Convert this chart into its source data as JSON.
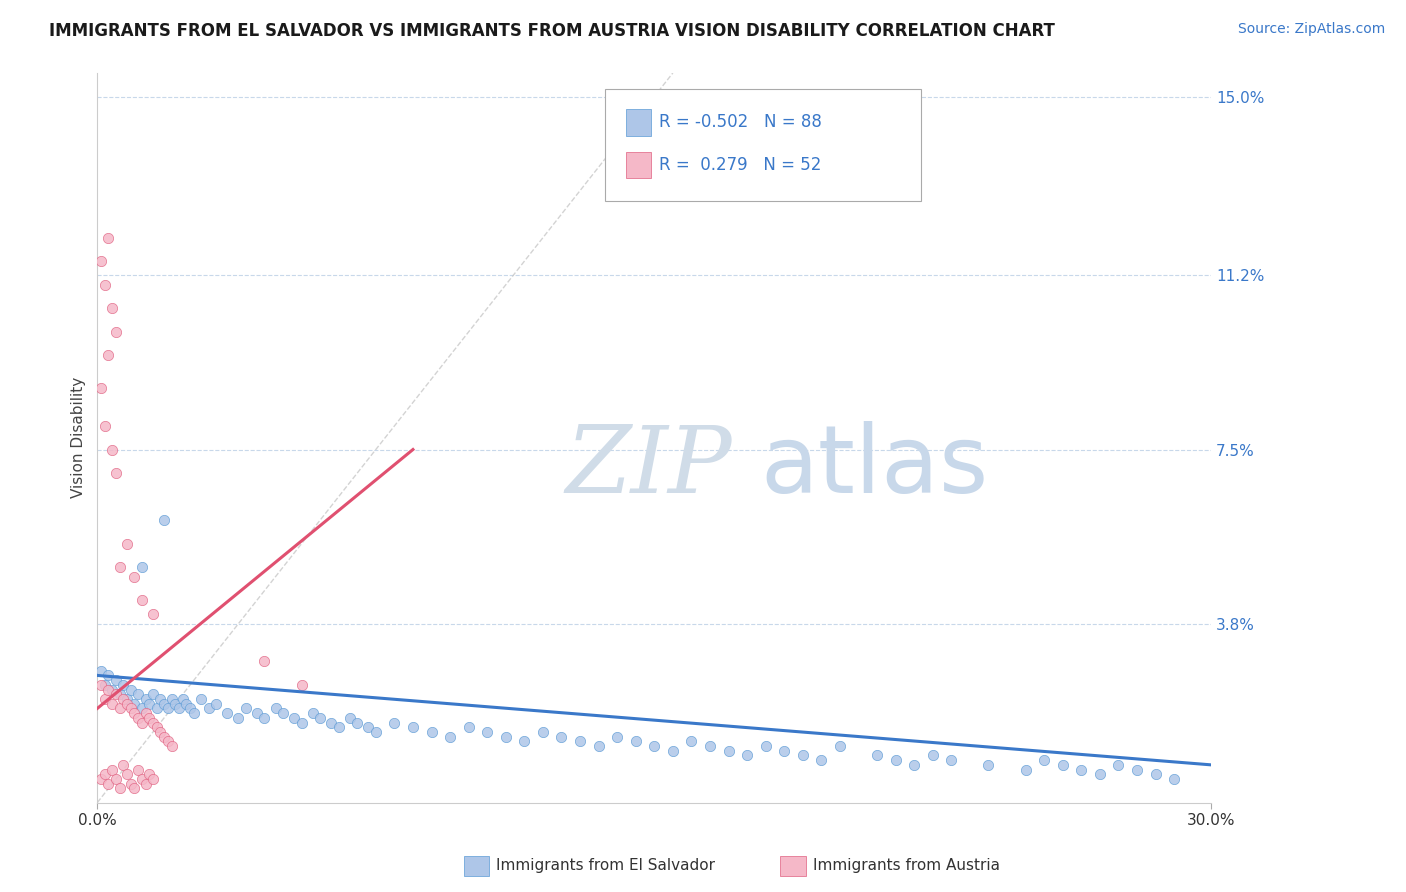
{
  "title": "IMMIGRANTS FROM EL SALVADOR VS IMMIGRANTS FROM AUSTRIA VISION DISABILITY CORRELATION CHART",
  "source_text": "Source: ZipAtlas.com",
  "ylabel": "Vision Disability",
  "xlim": [
    0.0,
    0.3
  ],
  "ylim": [
    0.0,
    0.155
  ],
  "ytick_vals": [
    0.038,
    0.075,
    0.112,
    0.15
  ],
  "ytick_labels": [
    "3.8%",
    "7.5%",
    "11.2%",
    "15.0%"
  ],
  "xtick_vals": [
    0.0,
    0.3
  ],
  "xtick_labels": [
    "0.0%",
    "30.0%"
  ],
  "series": [
    {
      "name": "Immigrants from El Salvador",
      "R": -0.502,
      "N": 88,
      "dot_color": "#aec6e8",
      "dot_edge": "#5b9bd5",
      "trend_color": "#3a78c9",
      "trend_start_y": 0.027,
      "trend_end_y": 0.008
    },
    {
      "name": "Immigrants from Austria",
      "R": 0.279,
      "N": 52,
      "dot_color": "#f5b8c8",
      "dot_edge": "#e06080",
      "trend_color": "#e05070",
      "trend_start_y": 0.02,
      "trend_end_y": 0.075
    }
  ],
  "background_color": "#ffffff",
  "grid_color": "#c8d8ea",
  "diagonal_color": "#c8c8c8",
  "watermark_color": "#dde8f5",
  "title_fontsize": 12,
  "tick_fontsize": 11,
  "legend_fontsize": 12,
  "source_fontsize": 10,
  "axis_label_fontsize": 11,
  "el_salvador_x": [
    0.001,
    0.002,
    0.003,
    0.004,
    0.005,
    0.006,
    0.007,
    0.008,
    0.009,
    0.01,
    0.011,
    0.012,
    0.013,
    0.014,
    0.015,
    0.016,
    0.017,
    0.018,
    0.019,
    0.02,
    0.021,
    0.022,
    0.023,
    0.024,
    0.025,
    0.026,
    0.028,
    0.03,
    0.032,
    0.035,
    0.038,
    0.04,
    0.043,
    0.045,
    0.048,
    0.05,
    0.053,
    0.055,
    0.058,
    0.06,
    0.063,
    0.065,
    0.068,
    0.07,
    0.073,
    0.075,
    0.08,
    0.085,
    0.09,
    0.095,
    0.1,
    0.105,
    0.11,
    0.115,
    0.12,
    0.125,
    0.13,
    0.135,
    0.14,
    0.145,
    0.15,
    0.155,
    0.16,
    0.165,
    0.17,
    0.175,
    0.18,
    0.185,
    0.19,
    0.195,
    0.2,
    0.21,
    0.215,
    0.22,
    0.225,
    0.23,
    0.24,
    0.25,
    0.255,
    0.26,
    0.265,
    0.27,
    0.275,
    0.28,
    0.285,
    0.29,
    0.012,
    0.018
  ],
  "el_salvador_y": [
    0.028,
    0.025,
    0.027,
    0.024,
    0.026,
    0.023,
    0.025,
    0.022,
    0.024,
    0.021,
    0.023,
    0.02,
    0.022,
    0.021,
    0.023,
    0.02,
    0.022,
    0.021,
    0.02,
    0.022,
    0.021,
    0.02,
    0.022,
    0.021,
    0.02,
    0.019,
    0.022,
    0.02,
    0.021,
    0.019,
    0.018,
    0.02,
    0.019,
    0.018,
    0.02,
    0.019,
    0.018,
    0.017,
    0.019,
    0.018,
    0.017,
    0.016,
    0.018,
    0.017,
    0.016,
    0.015,
    0.017,
    0.016,
    0.015,
    0.014,
    0.016,
    0.015,
    0.014,
    0.013,
    0.015,
    0.014,
    0.013,
    0.012,
    0.014,
    0.013,
    0.012,
    0.011,
    0.013,
    0.012,
    0.011,
    0.01,
    0.012,
    0.011,
    0.01,
    0.009,
    0.012,
    0.01,
    0.009,
    0.008,
    0.01,
    0.009,
    0.008,
    0.007,
    0.009,
    0.008,
    0.007,
    0.006,
    0.008,
    0.007,
    0.006,
    0.005,
    0.05,
    0.06
  ],
  "austria_x": [
    0.001,
    0.002,
    0.003,
    0.004,
    0.005,
    0.006,
    0.007,
    0.008,
    0.009,
    0.01,
    0.011,
    0.012,
    0.013,
    0.014,
    0.015,
    0.016,
    0.017,
    0.018,
    0.019,
    0.02,
    0.001,
    0.002,
    0.003,
    0.004,
    0.005,
    0.006,
    0.007,
    0.008,
    0.009,
    0.01,
    0.011,
    0.012,
    0.013,
    0.014,
    0.015,
    0.001,
    0.002,
    0.003,
    0.004,
    0.005,
    0.001,
    0.002,
    0.003,
    0.004,
    0.005,
    0.006,
    0.008,
    0.01,
    0.012,
    0.015,
    0.045,
    0.055
  ],
  "austria_y": [
    0.025,
    0.022,
    0.024,
    0.021,
    0.023,
    0.02,
    0.022,
    0.021,
    0.02,
    0.019,
    0.018,
    0.017,
    0.019,
    0.018,
    0.017,
    0.016,
    0.015,
    0.014,
    0.013,
    0.012,
    0.005,
    0.006,
    0.004,
    0.007,
    0.005,
    0.003,
    0.008,
    0.006,
    0.004,
    0.003,
    0.007,
    0.005,
    0.004,
    0.006,
    0.005,
    0.088,
    0.08,
    0.095,
    0.075,
    0.07,
    0.115,
    0.11,
    0.12,
    0.105,
    0.1,
    0.05,
    0.055,
    0.048,
    0.043,
    0.04,
    0.03,
    0.025
  ]
}
